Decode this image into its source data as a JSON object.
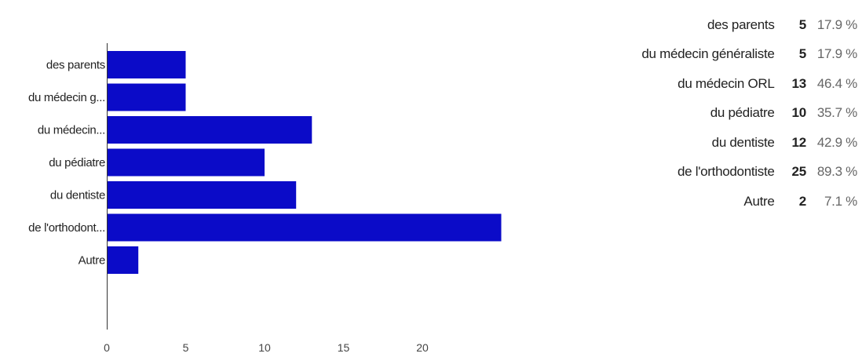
{
  "chart_data": {
    "type": "bar",
    "orientation": "horizontal",
    "categories": [
      "des parents",
      "du médecin g...",
      "du médecin...",
      "du pédiatre",
      "du dentiste",
      "de l'orthodont...",
      "Autre"
    ],
    "values": [
      5,
      5,
      13,
      10,
      12,
      25,
      2
    ],
    "xticks": [
      "0",
      "5",
      "10",
      "15",
      "20"
    ],
    "xlim": [
      0,
      25
    ],
    "grid": false,
    "bar_color": "#0b0bc8"
  },
  "summary": {
    "rows": [
      {
        "label": "des parents",
        "count": "5",
        "percent": "17.9 %"
      },
      {
        "label": "du médecin généraliste",
        "count": "5",
        "percent": "17.9 %"
      },
      {
        "label": "du médecin ORL",
        "count": "13",
        "percent": "46.4 %"
      },
      {
        "label": "du pédiatre",
        "count": "10",
        "percent": "35.7 %"
      },
      {
        "label": "du dentiste",
        "count": "12",
        "percent": "42.9 %"
      },
      {
        "label": "de l'orthodontiste",
        "count": "25",
        "percent": "89.3 %"
      },
      {
        "label": "Autre",
        "count": "2",
        "percent": "7.1 %"
      }
    ]
  }
}
